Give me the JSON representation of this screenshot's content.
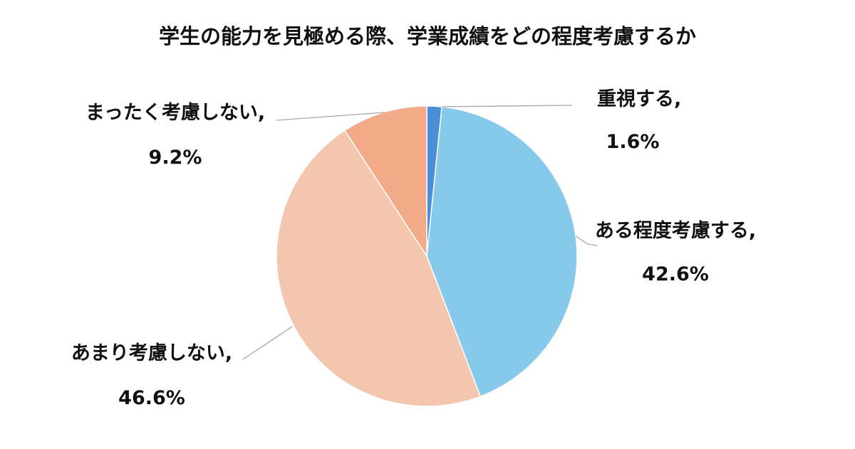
{
  "chart_data": {
    "type": "pie",
    "title": "学生の能力を見極める際、学業成績をどの程度考慮するか",
    "slices": [
      {
        "label": "重視する,",
        "value": 1.6,
        "value_label": "1.6%",
        "color": "#4a90d9"
      },
      {
        "label": "ある程度考慮する,",
        "value": 42.6,
        "value_label": "42.6%",
        "color": "#86c9eb"
      },
      {
        "label": "あまり考慮しない,",
        "value": 46.6,
        "value_label": "46.6%",
        "color": "#f5c6ae"
      },
      {
        "label": "まったく考慮しない,",
        "value": 9.2,
        "value_label": "9.2%",
        "color": "#f2ab88"
      }
    ],
    "start": "12 o'clock",
    "direction": "clockwise",
    "legend": "none",
    "data_labels": "outside with leader lines"
  }
}
